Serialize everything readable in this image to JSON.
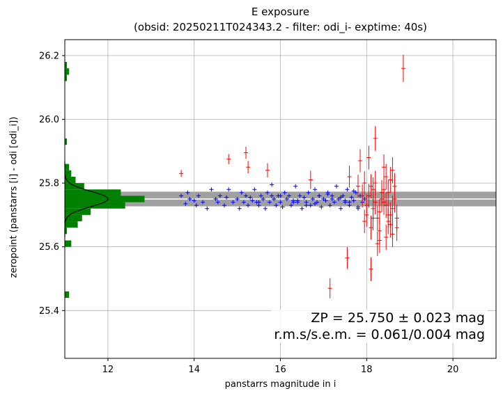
{
  "chart_data": {
    "type": "scatter",
    "title": "E exposure",
    "subtitle": "(obsid: 20250211T024343.2 - filter: odi_i- exptime: 40s)",
    "xlabel": "panstarrs magnitude in i",
    "ylabel": "zeropoint (panstarrs [i] - odi [odi_i])",
    "xlim": [
      11,
      21
    ],
    "ylim": [
      25.25,
      26.25
    ],
    "xticks": [
      "12",
      "14",
      "16",
      "18",
      "20"
    ],
    "yticks": [
      "25.4",
      "25.6",
      "25.8",
      "26.0",
      "26.2"
    ],
    "grid": true,
    "zp": 25.75,
    "zp_sigma": 0.023,
    "zp_band_halfwidth": 0.023,
    "annotation": [
      "ZP = 25.750 ± 0.023 mag",
      "r.m.s/s.e.m. = 0.061/0.004 mag"
    ],
    "colors": {
      "used": "#0000ff",
      "rejected": "#ff0000",
      "histogram": "#008000",
      "band": "#a0a0a0",
      "fit": "#000000"
    },
    "series": [
      {
        "color": "blue",
        "marker": "+",
        "x": [
          13.7,
          13.8,
          13.85,
          13.9,
          14.0,
          14.05,
          14.1,
          14.2,
          14.3,
          14.4,
          14.5,
          14.55,
          14.6,
          14.7,
          14.75,
          14.8,
          14.9,
          15.0,
          15.05,
          15.1,
          15.15,
          15.2,
          15.25,
          15.3,
          15.35,
          15.4,
          15.45,
          15.5,
          15.55,
          15.6,
          15.65,
          15.7,
          15.75,
          15.8,
          15.85,
          15.9,
          15.95,
          16.0,
          16.05,
          16.1,
          16.15,
          16.2,
          16.25,
          16.3,
          16.35,
          16.4,
          16.45,
          16.5,
          16.55,
          16.6,
          16.65,
          16.7,
          16.75,
          16.8,
          16.85,
          16.9,
          16.95,
          17.0,
          17.05,
          17.1,
          17.15,
          17.2,
          17.25,
          17.3,
          17.35,
          17.4,
          17.45,
          17.5,
          17.55,
          17.6,
          17.65,
          17.7,
          17.75,
          17.8,
          17.85,
          17.9,
          17.95,
          16.0,
          16.3,
          16.6,
          16.9,
          17.2,
          17.5,
          17.7,
          17.8,
          15.5,
          15.8,
          16.4,
          16.8,
          17.1,
          17.4,
          17.6,
          17.9
        ],
        "y": [
          25.76,
          25.735,
          25.77,
          25.75,
          25.745,
          25.73,
          25.76,
          25.74,
          25.72,
          25.78,
          25.75,
          25.74,
          25.76,
          25.73,
          25.755,
          25.78,
          25.74,
          25.75,
          25.72,
          25.77,
          25.74,
          25.76,
          25.73,
          25.755,
          25.745,
          25.78,
          25.74,
          25.73,
          25.76,
          25.75,
          25.72,
          25.77,
          25.74,
          25.795,
          25.75,
          25.73,
          25.76,
          25.74,
          25.725,
          25.77,
          25.75,
          25.76,
          25.73,
          25.745,
          25.79,
          25.74,
          25.76,
          25.72,
          25.755,
          25.74,
          25.77,
          25.73,
          25.75,
          25.78,
          25.74,
          25.76,
          25.725,
          25.75,
          25.745,
          25.77,
          25.73,
          25.76,
          25.74,
          25.79,
          25.75,
          25.72,
          25.76,
          25.74,
          25.78,
          25.73,
          25.755,
          25.745,
          25.77,
          25.72,
          25.76,
          25.74,
          25.75,
          25.76,
          25.74,
          25.73,
          25.76,
          25.75,
          25.745,
          25.775,
          25.725,
          25.74,
          25.76,
          25.745,
          25.735,
          25.765,
          25.755,
          25.74,
          25.76
        ]
      },
      {
        "color": "red",
        "marker": "+",
        "x": [
          13.7,
          14.8,
          15.2,
          15.25,
          15.7,
          16.7,
          17.15,
          17.55,
          17.6,
          17.8,
          17.85,
          17.95,
          18.0,
          18.05,
          18.1,
          18.1,
          18.15,
          18.2,
          18.25,
          18.3,
          18.35,
          18.4,
          18.45,
          18.5,
          18.55,
          18.6,
          18.65,
          18.7,
          18.85,
          18.2,
          18.3,
          18.4,
          18.5,
          18.6,
          18.05,
          18.15,
          18.25,
          18.35,
          18.45,
          18.55,
          18.65,
          17.9,
          18.0,
          18.2,
          18.4,
          18.6,
          18.3,
          18.5,
          18.7,
          17.95,
          18.1,
          18.45,
          18.15,
          18.55
        ],
        "y": [
          25.83,
          25.875,
          25.895,
          25.85,
          25.84,
          25.81,
          25.47,
          25.565,
          25.82,
          25.79,
          25.87,
          25.68,
          25.73,
          25.76,
          25.53,
          25.79,
          25.72,
          25.8,
          25.69,
          25.65,
          25.77,
          25.74,
          25.63,
          25.68,
          25.81,
          25.72,
          25.75,
          25.66,
          26.16,
          25.94,
          25.62,
          25.78,
          25.7,
          25.84,
          25.88,
          25.69,
          25.61,
          25.75,
          25.82,
          25.67,
          25.79,
          25.76,
          25.7,
          25.74,
          25.85,
          25.64,
          25.71,
          25.77,
          25.69,
          25.8,
          25.66,
          25.73,
          25.78,
          25.7
        ]
      }
    ],
    "histogram": {
      "bin_edges": [
        25.4,
        25.42,
        25.44,
        25.46,
        25.48,
        25.5,
        25.52,
        25.54,
        25.56,
        25.58,
        25.6,
        25.62,
        25.64,
        25.66,
        25.68,
        25.7,
        25.72,
        25.74,
        25.76,
        25.78,
        25.8,
        25.82,
        25.84,
        25.86,
        25.88,
        25.9,
        25.92,
        25.94,
        25.96,
        25.98,
        26.0,
        26.02,
        26.04,
        26.06,
        26.08,
        26.1,
        26.12,
        26.14,
        26.16,
        26.18
      ],
      "counts": [
        0,
        0,
        0.1,
        0,
        0,
        0,
        0,
        0,
        0,
        0,
        0.15,
        0,
        0.05,
        0.3,
        0.4,
        0.6,
        1.4,
        1.85,
        1.3,
        0.45,
        0.25,
        0.15,
        0.1,
        0,
        0,
        0,
        0.05,
        0,
        0,
        0,
        0,
        0,
        0,
        0,
        0,
        0,
        0.05,
        0.1,
        0.05
      ]
    },
    "gauss_fit": {
      "mean": 25.75,
      "sigma": 0.024,
      "peak": 1.0
    }
  }
}
